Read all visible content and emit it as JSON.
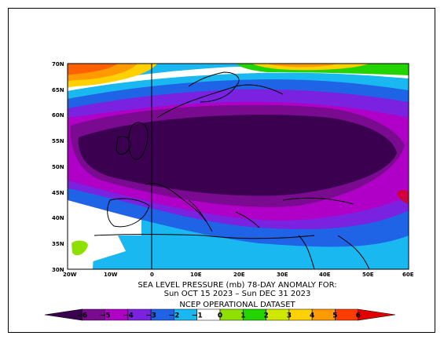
{
  "caption": {
    "line1": "SEA LEVEL PRESSURE (mb)   78-DAY ANOMALY FOR:",
    "line2": "Sun OCT 15 2023 – Sun DEC 31 2023",
    "line3": "NCEP OPERATIONAL DATASET"
  },
  "axes": {
    "lat_ticks": [
      "70N",
      "65N",
      "60N",
      "55N",
      "50N",
      "45N",
      "40N",
      "35N",
      "30N"
    ],
    "lon_ticks": [
      "20W",
      "10W",
      "0",
      "10E",
      "20E",
      "30E",
      "40E",
      "50E",
      "60E"
    ]
  },
  "colorbar": {
    "labels": [
      "−6",
      "−5",
      "−4",
      "−3",
      "−2",
      "−1",
      "0",
      "1",
      "2",
      "3",
      "4",
      "5",
      "6"
    ],
    "colors": [
      "#3b0050",
      "#7a0a8f",
      "#b000c8",
      "#7a22e0",
      "#1f63e6",
      "#19b8f0",
      "#ffffff",
      "#8fe000",
      "#24d400",
      "#cfe800",
      "#ffd100",
      "#ff9a00",
      "#ff3c00",
      "#e00000"
    ]
  },
  "map": {
    "lon_range": [
      -20,
      60
    ],
    "lat_range": [
      30,
      70
    ],
    "projection": "lat-lon",
    "shaded_field": "sea level pressure anomaly (mb)"
  }
}
